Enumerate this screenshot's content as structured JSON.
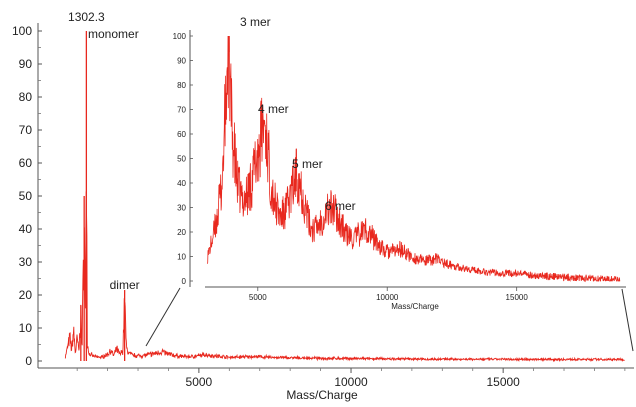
{
  "chart_data": [
    {
      "type": "line",
      "xlabel": "Mass/Charge",
      "ylabel": "",
      "xlim": [
        600,
        19300
      ],
      "ylim": [
        -2,
        100
      ],
      "x_ticks": [
        5000,
        10000,
        15000
      ],
      "y_ticks": [
        0,
        10,
        20,
        30,
        40,
        50,
        60,
        70,
        80,
        90,
        100
      ],
      "grid": false,
      "color": "#e8281e",
      "series": [
        {
          "values": [
            [
              600,
              0.5
            ],
            [
              760,
              8.0
            ],
            [
              820,
              3.5
            ],
            [
              880,
              10.5
            ],
            [
              940,
              2.5
            ],
            [
              1000,
              7.5
            ],
            [
              1060,
              3.0
            ],
            [
              1120,
              17.0
            ],
            [
              1160,
              4.0
            ],
            [
              1230,
              50.0
            ],
            [
              1270,
              9.0
            ],
            [
              1302.3,
              100.0
            ],
            [
              1330,
              6.0
            ],
            [
              1400,
              2.0
            ],
            [
              1600,
              1.2
            ],
            [
              1800,
              1.0
            ],
            [
              2000,
              2.0
            ],
            [
              2100,
              3.5
            ],
            [
              2200,
              1.5
            ],
            [
              2300,
              4.0
            ],
            [
              2400,
              2.0
            ],
            [
              2500,
              3.2
            ],
            [
              2560,
              21.5
            ],
            [
              2620,
              4.0
            ],
            [
              2700,
              2.5
            ],
            [
              2800,
              1.8
            ],
            [
              3000,
              1.5
            ],
            [
              3300,
              1.8
            ],
            [
              3600,
              2.4
            ],
            [
              3800,
              3.0
            ],
            [
              3900,
              2.4
            ],
            [
              4200,
              1.6
            ],
            [
              4600,
              1.2
            ],
            [
              5000,
              1.4
            ],
            [
              5200,
              2.0
            ],
            [
              5400,
              1.6
            ],
            [
              6000,
              1.0
            ],
            [
              6800,
              1.2
            ],
            [
              7500,
              0.9
            ],
            [
              8000,
              0.8
            ],
            [
              9000,
              0.6
            ],
            [
              10000,
              0.5
            ],
            [
              12000,
              0.35
            ],
            [
              15000,
              0.25
            ],
            [
              19000,
              0.2
            ]
          ]
        }
      ],
      "annotations": [
        {
          "text": "1302.3",
          "x": 1302.3,
          "y": 100
        },
        {
          "text": "monomer",
          "x": 1302.3,
          "y": 95
        },
        {
          "text": "dimer",
          "x": 2560,
          "y": 22
        }
      ]
    },
    {
      "type": "line",
      "role": "inset",
      "xlabel": "Mass/Charge",
      "ylabel": "",
      "xlim": [
        3000,
        19300
      ],
      "ylim": [
        -2,
        100
      ],
      "x_ticks": [
        5000,
        10000,
        15000
      ],
      "y_ticks": [
        0,
        10,
        20,
        30,
        40,
        50,
        60,
        70,
        80,
        90,
        100
      ],
      "grid": false,
      "color": "#e8281e",
      "series": [
        {
          "values": [
            [
              3000,
              8
            ],
            [
              3200,
              15
            ],
            [
              3400,
              24
            ],
            [
              3600,
              38
            ],
            [
              3700,
              58
            ],
            [
              3800,
              80
            ],
            [
              3850,
              100
            ],
            [
              3900,
              88
            ],
            [
              4000,
              62
            ],
            [
              4200,
              40
            ],
            [
              4400,
              33
            ],
            [
              4600,
              35
            ],
            [
              4800,
              42
            ],
            [
              5000,
              52
            ],
            [
              5150,
              60
            ],
            [
              5250,
              65
            ],
            [
              5350,
              58
            ],
            [
              5500,
              40
            ],
            [
              5700,
              30
            ],
            [
              5900,
              26
            ],
            [
              6100,
              29
            ],
            [
              6300,
              36
            ],
            [
              6500,
              44
            ],
            [
              6600,
              42
            ],
            [
              6800,
              32
            ],
            [
              7000,
              23
            ],
            [
              7200,
              21
            ],
            [
              7400,
              24
            ],
            [
              7700,
              29
            ],
            [
              7900,
              30
            ],
            [
              8100,
              26
            ],
            [
              8400,
              19
            ],
            [
              8700,
              17
            ],
            [
              9000,
              20
            ],
            [
              9200,
              21
            ],
            [
              9500,
              17
            ],
            [
              9900,
              12
            ],
            [
              10200,
              12
            ],
            [
              10500,
              13
            ],
            [
              10900,
              10
            ],
            [
              11400,
              8
            ],
            [
              11900,
              9
            ],
            [
              12300,
              7
            ],
            [
              13000,
              5
            ],
            [
              14000,
              3.5
            ],
            [
              15000,
              3
            ],
            [
              16000,
              2
            ],
            [
              17000,
              1.5
            ],
            [
              18000,
              1
            ],
            [
              19000,
              0.5
            ]
          ]
        }
      ],
      "annotations": [
        {
          "text": "3 mer",
          "x": 3850,
          "y": 100
        },
        {
          "text": "4 mer",
          "x": 5250,
          "y": 65
        },
        {
          "text": "5 mer",
          "x": 6500,
          "y": 44
        },
        {
          "text": "6 mer",
          "x": 7900,
          "y": 30
        }
      ]
    }
  ]
}
